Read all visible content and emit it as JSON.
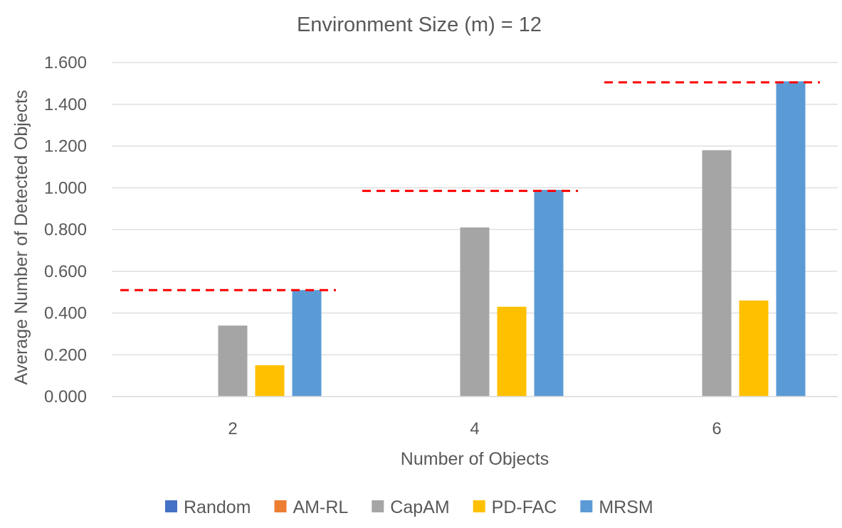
{
  "chart_data": {
    "type": "bar",
    "title": "Environment Size (m) = 12",
    "xlabel": "Number of Objects",
    "ylabel": "Average Number of Detected Objects",
    "categories": [
      "2",
      "4",
      "6"
    ],
    "ylim": [
      0,
      1.6
    ],
    "yticks": [
      "0.000",
      "0.200",
      "0.400",
      "0.600",
      "0.800",
      "1.000",
      "1.200",
      "1.400",
      "1.600"
    ],
    "ytick_values": [
      0,
      0.2,
      0.4,
      0.6,
      0.8,
      1.0,
      1.2,
      1.4,
      1.6
    ],
    "grid": true,
    "legend_position": "bottom",
    "series": [
      {
        "name": "Random",
        "color": "#4472C4",
        "values": [
          0,
          0,
          0
        ]
      },
      {
        "name": "AM-RL",
        "color": "#ED7D31",
        "values": [
          0,
          0,
          0
        ]
      },
      {
        "name": "CapAM",
        "color": "#A5A5A5",
        "values": [
          0.34,
          0.81,
          1.18
        ]
      },
      {
        "name": "PD-FAC",
        "color": "#FFC000",
        "values": [
          0.15,
          0.43,
          0.46
        ]
      },
      {
        "name": "MRSM",
        "color": "#5B9BD5",
        "values": [
          0.51,
          0.99,
          1.51
        ]
      }
    ],
    "reference_lines": {
      "style": "dashed",
      "color": "#FF0000",
      "values": [
        0.51,
        0.985,
        1.505
      ]
    }
  }
}
